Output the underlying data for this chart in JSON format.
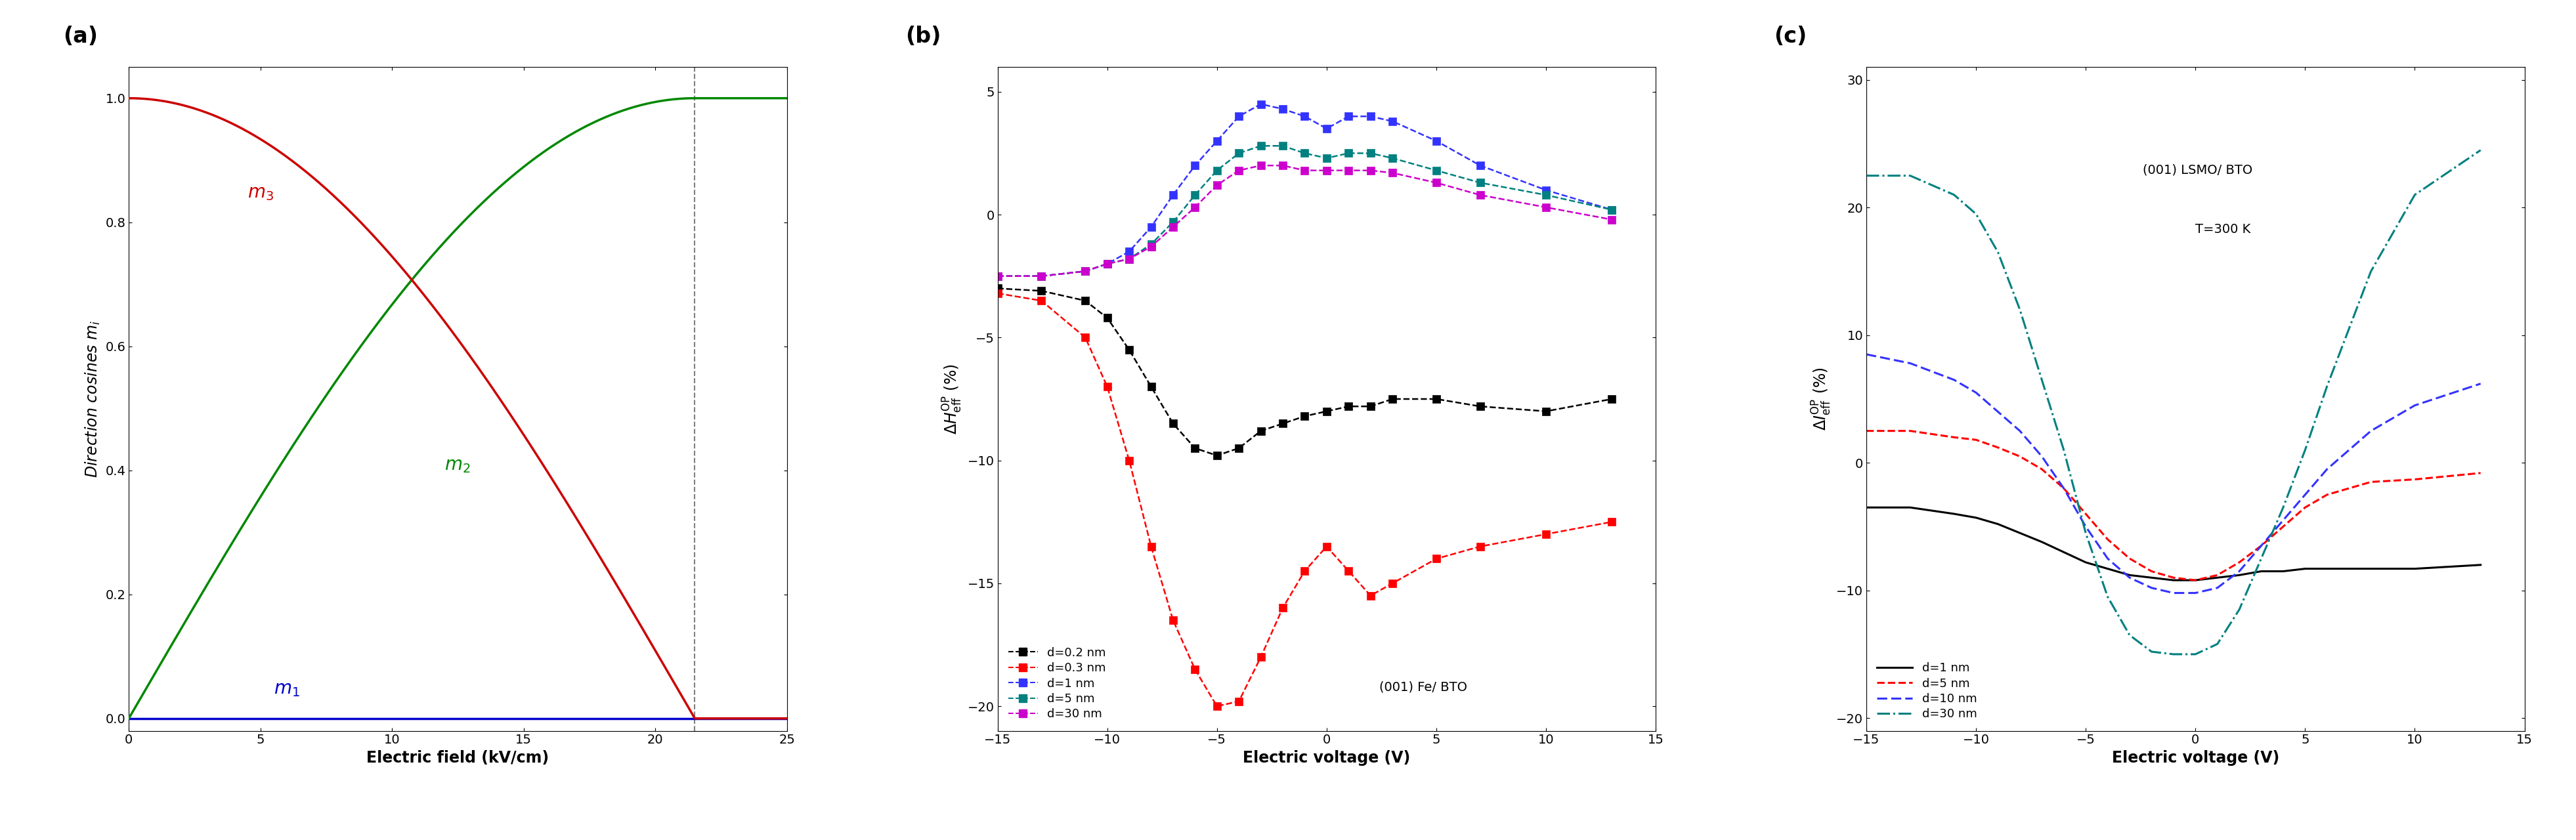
{
  "panel_a": {
    "xlabel": "Electric field (kV/cm)",
    "ylabel": "Direction cosines $m_i$",
    "xlim": [
      0,
      25
    ],
    "ylim": [
      -0.02,
      1.05
    ],
    "dashed_x": 21.5,
    "m1_color": "#0000cc",
    "m2_color": "#008800",
    "m3_color": "#cc0000"
  },
  "panel_b": {
    "xlabel": "Electric voltage (V)",
    "ylabel": "$\\Delta H_{\\mathrm{eff}}^{\\mathrm{OP}}$ (%)",
    "xlim": [
      -15,
      15
    ],
    "ylim": [
      -21,
      6
    ],
    "yticks": [
      -20,
      -15,
      -10,
      -5,
      0,
      5
    ],
    "xticks": [
      -15,
      -10,
      -5,
      0,
      5,
      10,
      15
    ],
    "annotation": "(001) Fe/ BTO"
  },
  "panel_c": {
    "xlabel": "Electric voltage (V)",
    "ylabel": "$\\Delta I_{\\mathrm{eff}}^{\\mathrm{OP}}$ (%)",
    "xlim": [
      -15,
      15
    ],
    "ylim": [
      -21,
      31
    ],
    "yticks": [
      -20,
      -10,
      0,
      10,
      20,
      30
    ],
    "xticks": [
      -15,
      -10,
      -5,
      0,
      5,
      10,
      15
    ],
    "annotation1": "(001) LSMO/ BTO",
    "annotation2": "T=300 K"
  }
}
